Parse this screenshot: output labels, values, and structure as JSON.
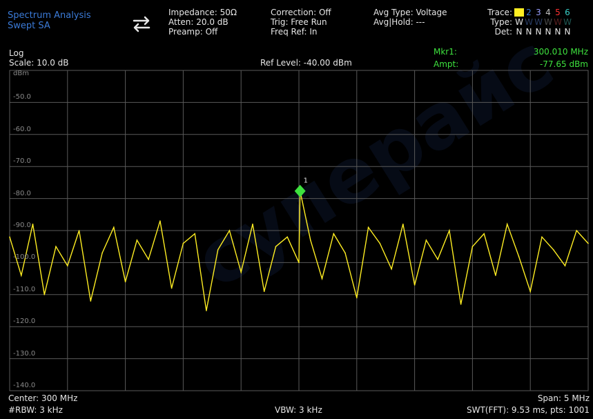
{
  "header": {
    "mode_line1": "Spectrum Analysis",
    "mode_line2": "Swept SA",
    "impedance": "Impedance: 50Ω",
    "atten": "Atten: 20.0 dB",
    "preamp": "Preamp: Off",
    "correction": "Correction: Off",
    "trig": "Trig: Free Run",
    "freq_ref": "Freq Ref: In",
    "avg_type": "Avg Type: Voltage",
    "avg_hold": "Avg|Hold: ---",
    "trace_label": "Trace:",
    "type_label": "Type:",
    "det_label": "Det:",
    "trace_numbers": [
      "1",
      "2",
      "3",
      "4",
      "5",
      "6"
    ],
    "type_values": [
      "W",
      "W",
      "W",
      "W",
      "W",
      "W"
    ],
    "det_values": [
      "N",
      "N",
      "N",
      "N",
      "N",
      "N"
    ]
  },
  "scale": {
    "log_label": "Log",
    "scale_text": "Scale: 10.0 dB",
    "ref_level": "Ref Level: -40.00 dBm",
    "y_unit": "dBm",
    "y_ticks": [
      "-50.0",
      "-60.0",
      "-70.0",
      "-80.0",
      "-90.0",
      "-100.0",
      "-110.0",
      "-120.0",
      "-130.0",
      "-140.0"
    ]
  },
  "marker": {
    "mkr_label": "Mkr1:",
    "ampt_label": "Ampt:",
    "mkr_value": "300.010 MHz",
    "ampt_value": "-77.65 dBm",
    "id": "1"
  },
  "footer": {
    "center": "Center: 300 MHz",
    "rbw": "#RBW: 3 kHz",
    "vbw": "VBW: 3 kHz",
    "span": "Span: 5 MHz",
    "swt": "SWT(FFT): 9.53 ms, pts: 1001"
  },
  "watermark": {
    "text": "суперайс"
  },
  "colors": {
    "trace": "#ffee22",
    "marker": "#3ee23e",
    "grid": "#5a5a5a",
    "mode": "#3b7bd8"
  },
  "chart_data": {
    "type": "line",
    "x_unit": "MHz",
    "y_unit": "dBm",
    "xlim": [
      297.5,
      302.5
    ],
    "ylim": [
      -140,
      -40
    ],
    "series": [
      {
        "name": "1",
        "x": [
          297.5,
          297.6,
          297.7,
          297.8,
          297.9,
          298.0,
          298.1,
          298.2,
          298.3,
          298.4,
          298.5,
          298.6,
          298.7,
          298.8,
          298.9,
          299.0,
          299.1,
          299.2,
          299.3,
          299.4,
          299.5,
          299.6,
          299.7,
          299.8,
          299.9,
          300.0,
          300.01,
          300.1,
          300.2,
          300.3,
          300.4,
          300.5,
          300.6,
          300.7,
          300.8,
          300.9,
          301.0,
          301.1,
          301.2,
          301.3,
          301.4,
          301.5,
          301.6,
          301.7,
          301.8,
          301.9,
          302.0,
          302.1,
          302.2,
          302.3,
          302.4,
          302.5
        ],
        "y": [
          -92,
          -104,
          -88,
          -110,
          -95,
          -101,
          -90,
          -112,
          -97,
          -89,
          -106,
          -93,
          -99,
          -87,
          -108,
          -94,
          -91,
          -115,
          -96,
          -90,
          -103,
          -88,
          -109,
          -95,
          -92,
          -100,
          -77.65,
          -93,
          -105,
          -91,
          -97,
          -111,
          -89,
          -94,
          -102,
          -88,
          -107,
          -93,
          -99,
          -90,
          -113,
          -95,
          -91,
          -104,
          -88,
          -98,
          -109,
          -92,
          -96,
          -101,
          -90,
          -94
        ]
      }
    ]
  }
}
